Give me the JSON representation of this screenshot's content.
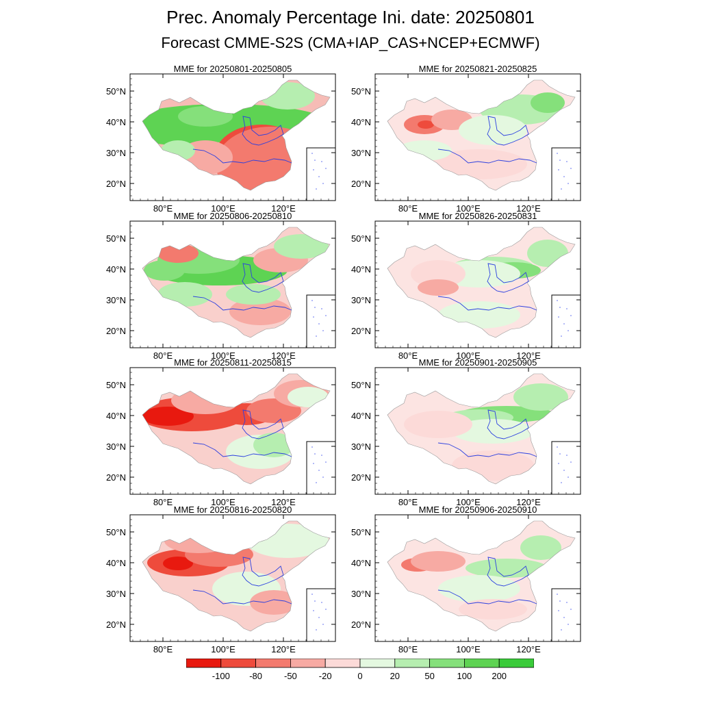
{
  "title": "Prec. Anomaly Percentage Ini. date: 20250801",
  "subtitle": "Forecast CMME-S2S (CMA+IAP_CAS+NCEP+ECMWF)",
  "axes": {
    "lat_ticks": [
      "50°N",
      "40°N",
      "30°N",
      "20°N"
    ],
    "lon_ticks": [
      "80°E",
      "100°E",
      "120°E"
    ]
  },
  "colors": {
    "c0": "#e8190f",
    "c1": "#ee4b3c",
    "c2": "#f37a6e",
    "c3": "#f7aaa3",
    "c4": "#fcdad8",
    "c5": "#e4f8e0",
    "c6": "#b6eeb0",
    "c7": "#85e07b",
    "c8": "#5ed353",
    "c9": "#3acb3a"
  },
  "legend": {
    "labels": [
      "-100",
      "-80",
      "-50",
      "-20",
      "0",
      "20",
      "50",
      "100",
      "200"
    ]
  },
  "panels": [
    {
      "title": "MME for 20250801-20250805",
      "fill": "#f6bcb6",
      "blobs": [
        [
          "c8",
          330,
          180,
          150,
          28
        ],
        [
          "c8",
          260,
          190,
          70,
          22
        ],
        [
          "c7",
          300,
          170,
          40,
          15
        ],
        [
          "c6",
          420,
          140,
          40,
          20
        ],
        [
          "c0",
          372,
          222,
          52,
          38
        ],
        [
          "c1",
          382,
          232,
          70,
          50
        ],
        [
          "c2",
          395,
          240,
          80,
          55
        ],
        [
          "c3",
          300,
          230,
          40,
          25
        ],
        [
          "c6",
          260,
          220,
          25,
          15
        ],
        [
          "c2",
          372,
          268,
          6,
          6
        ]
      ]
    },
    {
      "title": "MME for 20250806-20250810",
      "fill": "#f9d0cc",
      "blobs": [
        [
          "c8",
          320,
          395,
          100,
          22
        ],
        [
          "c7",
          290,
          380,
          60,
          20
        ],
        [
          "c7",
          240,
          395,
          30,
          15
        ],
        [
          "c2",
          260,
          370,
          30,
          14
        ],
        [
          "c3",
          410,
          380,
          40,
          18
        ],
        [
          "c6",
          440,
          360,
          40,
          18
        ],
        [
          "c3",
          380,
          455,
          45,
          20
        ],
        [
          "c6",
          270,
          430,
          40,
          18
        ],
        [
          "c6",
          370,
          430,
          40,
          15
        ]
      ]
    },
    {
      "title": "MME for 20250811-20250815",
      "fill": "#f9d0cc",
      "blobs": [
        [
          "c1",
          280,
          605,
          80,
          25
        ],
        [
          "c0",
          245,
          608,
          38,
          14
        ],
        [
          "c1",
          360,
          605,
          40,
          16
        ],
        [
          "c2",
          400,
          600,
          40,
          18
        ],
        [
          "c3",
          300,
          585,
          50,
          20
        ],
        [
          "c5",
          380,
          660,
          50,
          25
        ],
        [
          "c6",
          400,
          650,
          30,
          18
        ],
        [
          "c3",
          440,
          575,
          40,
          20
        ],
        [
          "c5",
          450,
          580,
          30,
          15
        ]
      ]
    },
    {
      "title": "MME for 20250816-20250820",
      "fill": "#f9d0cc",
      "blobs": [
        [
          "c1",
          275,
          822,
          60,
          20
        ],
        [
          "c0",
          260,
          823,
          22,
          10
        ],
        [
          "c2",
          320,
          810,
          50,
          18
        ],
        [
          "c3",
          290,
          790,
          50,
          18
        ],
        [
          "c5",
          360,
          860,
          50,
          25
        ],
        [
          "c5",
          420,
          790,
          60,
          25
        ],
        [
          "c3",
          400,
          880,
          35,
          18
        ]
      ]
    },
    {
      "title": "MME for 20250821-20250825",
      "fill": "#fce4e2",
      "blobs": [
        [
          "c2",
          620,
          182,
          30,
          14
        ],
        [
          "c1",
          622,
          182,
          12,
          6
        ],
        [
          "c3",
          660,
          175,
          30,
          15
        ],
        [
          "c6",
          760,
          160,
          60,
          22
        ],
        [
          "c7",
          800,
          150,
          25,
          15
        ],
        [
          "c5",
          720,
          190,
          50,
          22
        ],
        [
          "c4",
          700,
          240,
          70,
          22
        ],
        [
          "c5",
          620,
          220,
          40,
          15
        ]
      ]
    },
    {
      "title": "MME for 20250826-20250831",
      "fill": "#fce4e2",
      "blobs": [
        [
          "c6",
          720,
          390,
          60,
          15
        ],
        [
          "c7",
          750,
          395,
          40,
          12
        ],
        [
          "c5",
          700,
          400,
          60,
          20
        ],
        [
          "c6",
          800,
          370,
          30,
          20
        ],
        [
          "c4",
          640,
          400,
          40,
          20
        ],
        [
          "c3",
          640,
          420,
          30,
          12
        ],
        [
          "c5",
          700,
          460,
          60,
          20
        ]
      ]
    },
    {
      "title": "MME for 20250901-20250905",
      "fill": "#fce4e2",
      "blobs": [
        [
          "c7",
          740,
          605,
          70,
          12
        ],
        [
          "c6",
          700,
          610,
          50,
          12
        ],
        [
          "c6",
          790,
          580,
          40,
          20
        ],
        [
          "c5",
          720,
          630,
          60,
          18
        ],
        [
          "c4",
          640,
          620,
          50,
          20
        ],
        [
          "c4",
          720,
          680,
          60,
          22
        ]
      ]
    },
    {
      "title": "MME for 20250906-20250910",
      "fill": "#fce4e2",
      "blobs": [
        [
          "c1",
          605,
          828,
          12,
          6
        ],
        [
          "c2",
          610,
          825,
          24,
          10
        ],
        [
          "c3",
          640,
          820,
          40,
          15
        ],
        [
          "c6",
          740,
          830,
          60,
          14
        ],
        [
          "c6",
          790,
          800,
          30,
          18
        ],
        [
          "c5",
          700,
          860,
          60,
          20
        ],
        [
          "c4",
          720,
          890,
          50,
          15
        ]
      ]
    }
  ]
}
